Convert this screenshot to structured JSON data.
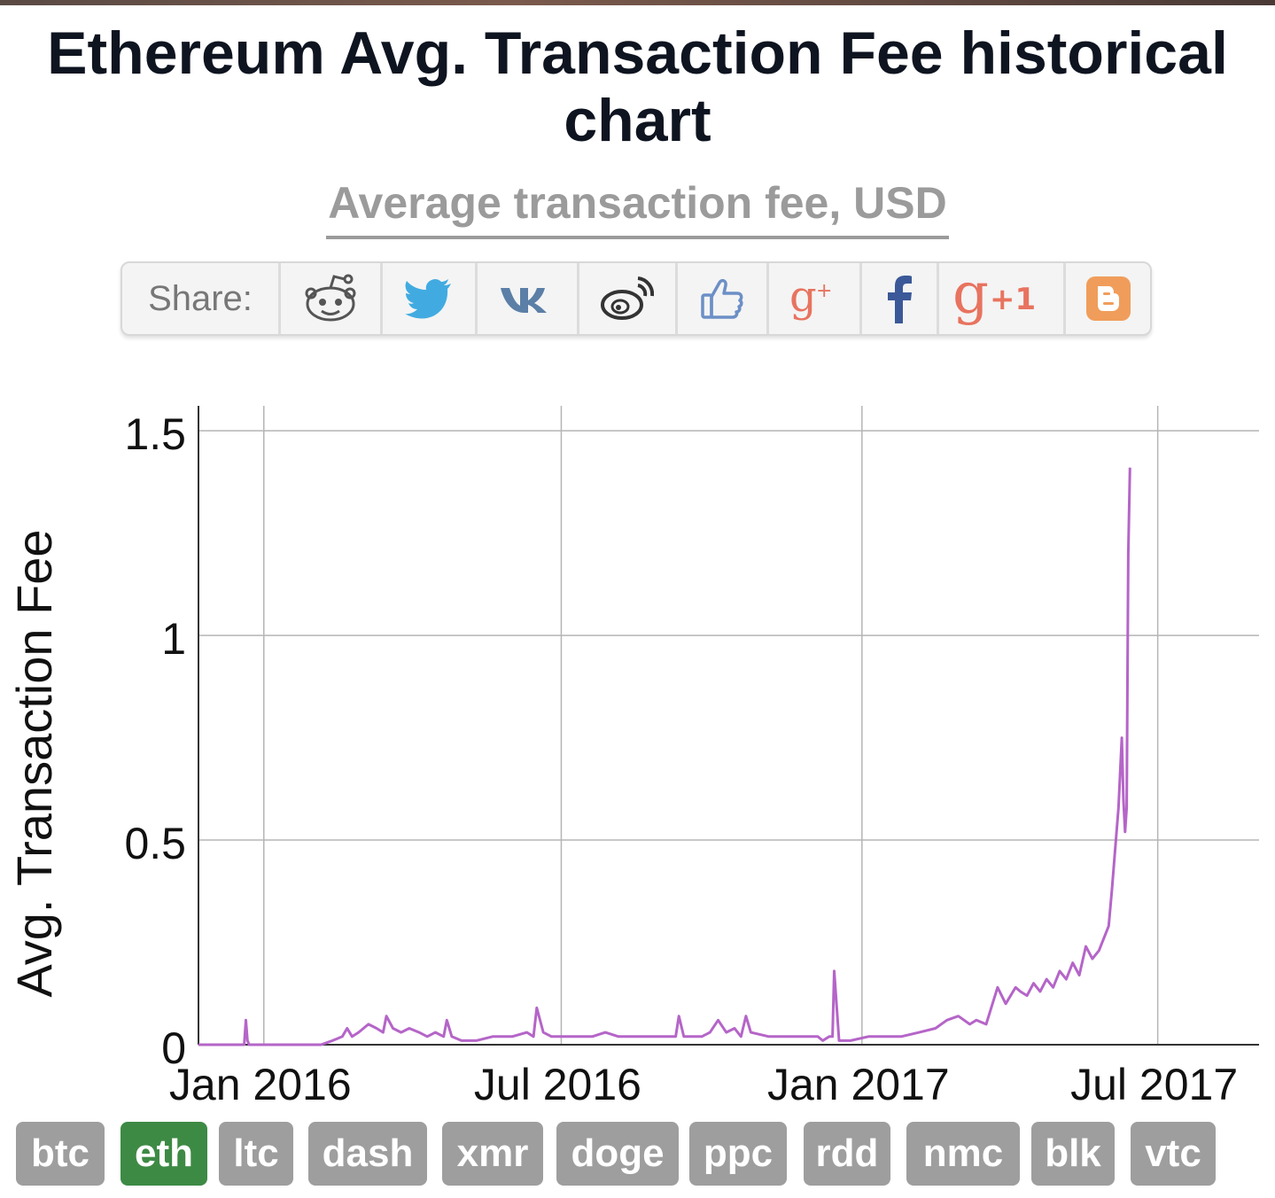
{
  "page": {
    "title": "Ethereum Avg. Transaction Fee historical chart",
    "subtitle": "Average transaction fee, USD"
  },
  "share": {
    "label": "Share:",
    "buttons": [
      {
        "icon": "reddit-icon",
        "color": "#555555"
      },
      {
        "icon": "twitter-icon",
        "color": "#41abe1"
      },
      {
        "icon": "vk-icon",
        "color": "#5b7fa6"
      },
      {
        "icon": "weibo-icon",
        "color": "#333333"
      },
      {
        "icon": "like-icon",
        "color": "#6c8fc6"
      },
      {
        "icon": "google-plus-icon",
        "color": "#e8735f"
      },
      {
        "icon": "facebook-icon",
        "color": "#3b5998"
      },
      {
        "icon": "google-plus-one-icon",
        "color": "#e8735f"
      },
      {
        "icon": "blogger-icon",
        "color": "#f09d5b"
      }
    ]
  },
  "coins": [
    {
      "label": "btc",
      "active": false
    },
    {
      "label": "eth",
      "active": true
    },
    {
      "label": "ltc",
      "active": false
    },
    {
      "label": "dash",
      "active": false
    },
    {
      "label": "xmr",
      "active": false
    },
    {
      "label": "doge",
      "active": false
    },
    {
      "label": "ppc",
      "active": false
    },
    {
      "label": "rdd",
      "active": false
    },
    {
      "label": "nmc",
      "active": false
    },
    {
      "label": "blk",
      "active": false
    },
    {
      "label": "vtc",
      "active": false
    }
  ],
  "chart_data": {
    "type": "line",
    "ylabel": "Avg. Transaction Fee",
    "xlabel": "",
    "ylim": [
      0,
      1.5
    ],
    "xlim": [
      "2015-11-22",
      "2017-09-01"
    ],
    "yticks": [
      "0",
      "0.5",
      "1",
      "1.5"
    ],
    "xticks": [
      {
        "label": "Jan 2016",
        "date": "2016-01-01"
      },
      {
        "label": "Jul 2016",
        "date": "2016-07-01"
      },
      {
        "label": "Jan 2017",
        "date": "2017-01-01"
      },
      {
        "label": "Jul 2017",
        "date": "2017-07-01"
      }
    ],
    "grid": true,
    "line_color": "#b565c8",
    "series": [
      {
        "x": [
          "2015-11-22",
          "2015-12-01",
          "2015-12-10",
          "2015-12-20",
          "2015-12-21",
          "2015-12-22",
          "2015-12-23",
          "2015-12-24",
          "2016-01-01",
          "2016-01-10",
          "2016-01-20",
          "2016-01-28",
          "2016-02-05",
          "2016-02-12",
          "2016-02-18",
          "2016-02-21",
          "2016-02-24",
          "2016-02-28",
          "2016-03-05",
          "2016-03-10",
          "2016-03-14",
          "2016-03-16",
          "2016-03-20",
          "2016-03-25",
          "2016-03-30",
          "2016-04-05",
          "2016-04-10",
          "2016-04-15",
          "2016-04-20",
          "2016-04-22",
          "2016-04-25",
          "2016-05-01",
          "2016-05-10",
          "2016-05-20",
          "2016-06-01",
          "2016-06-10",
          "2016-06-14",
          "2016-06-16",
          "2016-06-20",
          "2016-06-25",
          "2016-07-01",
          "2016-07-10",
          "2016-07-20",
          "2016-07-28",
          "2016-08-05",
          "2016-08-15",
          "2016-08-25",
          "2016-09-05",
          "2016-09-09",
          "2016-09-11",
          "2016-09-14",
          "2016-09-25",
          "2016-09-30",
          "2016-10-05",
          "2016-10-10",
          "2016-10-15",
          "2016-10-19",
          "2016-10-22",
          "2016-10-25",
          "2016-11-05",
          "2016-11-15",
          "2016-11-25",
          "2016-12-05",
          "2016-12-08",
          "2016-12-12",
          "2016-12-14",
          "2016-12-15",
          "2016-12-18",
          "2016-12-25",
          "2017-01-05",
          "2017-01-15",
          "2017-01-25",
          "2017-02-05",
          "2017-02-15",
          "2017-02-22",
          "2017-03-01",
          "2017-03-08",
          "2017-03-12",
          "2017-03-18",
          "2017-03-25",
          "2017-03-30",
          "2017-04-05",
          "2017-04-08",
          "2017-04-12",
          "2017-04-16",
          "2017-04-20",
          "2017-04-24",
          "2017-04-28",
          "2017-05-02",
          "2017-05-06",
          "2017-05-10",
          "2017-05-14",
          "2017-05-18",
          "2017-05-22",
          "2017-05-26",
          "2017-05-29",
          "2017-06-01",
          "2017-06-03",
          "2017-06-05",
          "2017-06-07",
          "2017-06-09",
          "2017-06-10",
          "2017-06-11",
          "2017-06-12",
          "2017-06-13",
          "2017-06-14"
        ],
        "y": [
          0.0,
          0.0,
          0.0,
          0.0,
          0.06,
          0.01,
          0.0,
          0.0,
          0.0,
          0.0,
          0.0,
          0.0,
          0.0,
          0.01,
          0.02,
          0.04,
          0.02,
          0.03,
          0.05,
          0.04,
          0.03,
          0.07,
          0.04,
          0.03,
          0.04,
          0.03,
          0.02,
          0.03,
          0.02,
          0.06,
          0.02,
          0.01,
          0.01,
          0.02,
          0.02,
          0.03,
          0.02,
          0.09,
          0.03,
          0.02,
          0.02,
          0.02,
          0.02,
          0.03,
          0.02,
          0.02,
          0.02,
          0.02,
          0.02,
          0.07,
          0.02,
          0.02,
          0.03,
          0.06,
          0.03,
          0.04,
          0.02,
          0.07,
          0.03,
          0.02,
          0.02,
          0.02,
          0.02,
          0.01,
          0.02,
          0.02,
          0.18,
          0.01,
          0.01,
          0.02,
          0.02,
          0.02,
          0.03,
          0.04,
          0.06,
          0.07,
          0.05,
          0.06,
          0.05,
          0.14,
          0.1,
          0.14,
          0.13,
          0.12,
          0.15,
          0.13,
          0.16,
          0.14,
          0.18,
          0.16,
          0.2,
          0.17,
          0.24,
          0.21,
          0.23,
          0.26,
          0.29,
          0.38,
          0.48,
          0.58,
          0.75,
          0.6,
          0.52,
          0.58,
          1.2,
          1.41
        ]
      }
    ]
  }
}
